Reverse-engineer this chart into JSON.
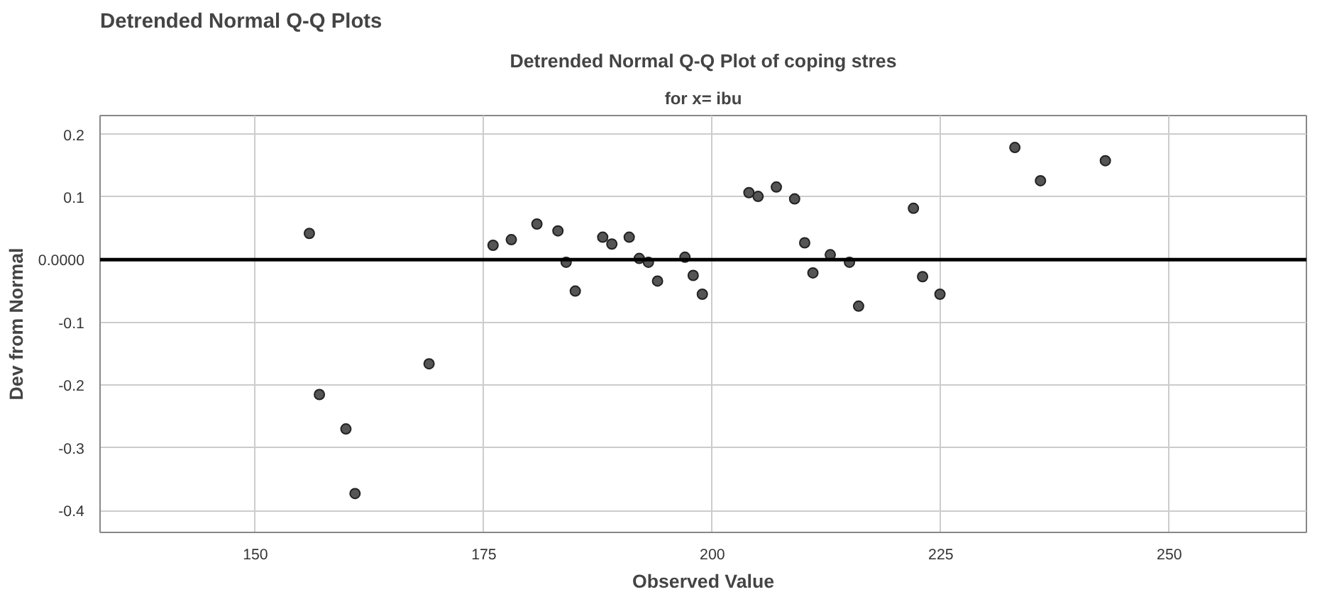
{
  "chart_data": {
    "type": "scatter",
    "title": "Detrended Normal Q-Q Plot of coping stres",
    "subtitle": "for x= ibu",
    "xlabel": "Observed Value",
    "ylabel": "Dev from Normal",
    "annotations": [
      "Detrended Normal Q-Q Plots"
    ],
    "x": [
      155.9,
      157.0,
      159.9,
      160.9,
      169.0,
      176.0,
      178.0,
      180.8,
      183.1,
      184.0,
      185.0,
      188.0,
      189.0,
      190.9,
      192.0,
      193.0,
      194.0,
      197.0,
      197.9,
      198.9,
      204.0,
      205.0,
      207.0,
      209.0,
      210.1,
      211.0,
      212.9,
      215.0,
      216.0,
      222.0,
      223.0,
      224.9,
      233.1,
      235.9,
      243.0
    ],
    "series": [
      {
        "color": "#555555",
        "values": [
          0.042,
          -0.215,
          -0.27,
          -0.373,
          -0.166,
          0.023,
          0.032,
          0.057,
          0.046,
          -0.004,
          -0.05,
          0.036,
          0.025,
          0.036,
          0.002,
          -0.004,
          -0.034,
          0.004,
          -0.025,
          -0.055,
          0.107,
          0.101,
          0.116,
          0.097,
          0.027,
          -0.021,
          0.008,
          -0.004,
          -0.074,
          0.082,
          -0.027,
          -0.055,
          0.179,
          0.126,
          0.158
        ]
      }
    ],
    "xlim": [
      133,
      265
    ],
    "ylim": [
      -0.435,
      0.23
    ],
    "xticks": [
      150,
      175,
      200,
      225,
      250
    ],
    "yticks": [
      0.2,
      0.1,
      {
        "value": 0,
        "label": "0.0000"
      },
      -0.1,
      -0.2,
      -0.3,
      -0.4
    ],
    "ref_lines": [
      {
        "axis": "y",
        "value": 0,
        "color": "#000000"
      }
    ],
    "grid": true,
    "marker": "circle"
  }
}
